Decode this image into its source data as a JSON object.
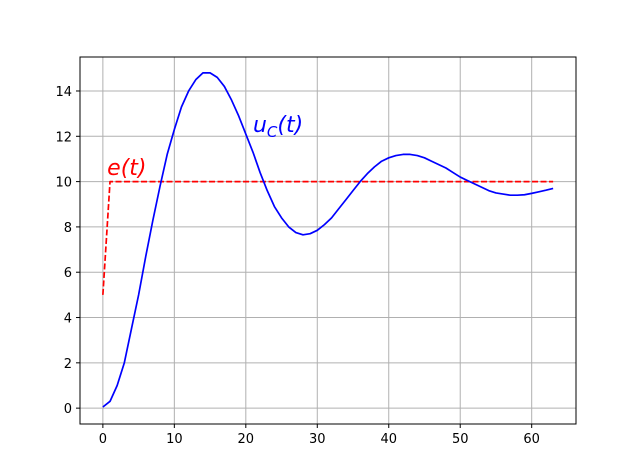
{
  "chart_data": {
    "type": "line",
    "title": "",
    "xlabel": "",
    "ylabel": "",
    "xlim": [
      -3.2,
      66.2
    ],
    "ylim": [
      -0.7,
      15.5
    ],
    "grid": true,
    "xticks": [
      0,
      10,
      20,
      30,
      40,
      50,
      60
    ],
    "yticks": [
      0,
      2,
      4,
      6,
      8,
      10,
      12,
      14
    ],
    "series": [
      {
        "label_text": "e(t)",
        "label_base": "e",
        "label_sub": "",
        "label_arg": "(t)",
        "label_at": [
          0.6,
          10.3
        ],
        "color": "#ff0000",
        "dash": "dashed",
        "x": [
          0,
          1,
          63
        ],
        "y": [
          5,
          10,
          10
        ]
      },
      {
        "label_text": "u_C(t)",
        "label_base": "u",
        "label_sub": "C",
        "label_arg": "(t)",
        "label_at": [
          21,
          12.2
        ],
        "color": "#0000ff",
        "dash": "solid",
        "x": [
          0,
          1,
          2,
          3,
          4,
          5,
          6,
          7,
          8,
          9,
          10,
          11,
          12,
          13,
          14,
          15,
          16,
          17,
          18,
          19,
          20,
          21,
          22,
          23,
          24,
          25,
          26,
          27,
          28,
          29,
          30,
          31,
          32,
          33,
          34,
          35,
          36,
          37,
          38,
          39,
          40,
          41,
          42,
          43,
          44,
          45,
          46,
          47,
          48,
          49,
          50,
          51,
          52,
          53,
          54,
          55,
          56,
          57,
          58,
          59,
          60,
          61,
          62,
          63
        ],
        "y": [
          0.05,
          0.3,
          1.0,
          2.0,
          3.5,
          5.0,
          6.7,
          8.3,
          9.8,
          11.2,
          12.3,
          13.3,
          14.0,
          14.5,
          14.8,
          14.8,
          14.6,
          14.2,
          13.6,
          12.9,
          12.1,
          11.3,
          10.4,
          9.6,
          8.9,
          8.4,
          8.0,
          7.75,
          7.65,
          7.7,
          7.85,
          8.1,
          8.4,
          8.8,
          9.2,
          9.6,
          10.0,
          10.35,
          10.65,
          10.9,
          11.05,
          11.15,
          11.2,
          11.2,
          11.15,
          11.05,
          10.9,
          10.75,
          10.6,
          10.4,
          10.2,
          10.05,
          9.9,
          9.75,
          9.6,
          9.5,
          9.45,
          9.4,
          9.4,
          9.42,
          9.48,
          9.55,
          9.62,
          9.7
        ]
      }
    ]
  }
}
